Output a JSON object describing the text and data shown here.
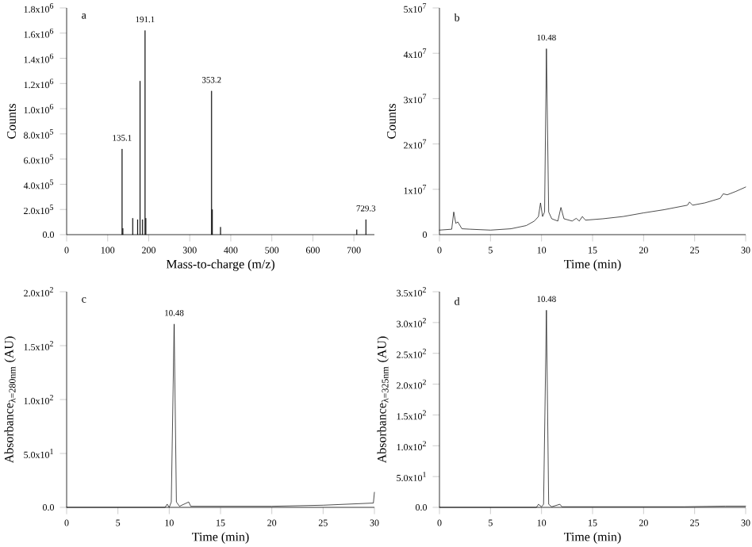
{
  "chart_data": [
    {
      "type": "bar",
      "title": "a",
      "xlabel": "Mass-to-charge (m/z)",
      "ylabel": "Counts",
      "color": "#000000",
      "x": [
        135.1,
        137,
        161,
        173,
        179,
        185,
        191.1,
        193,
        353.2,
        355,
        375,
        707,
        729.3
      ],
      "values": [
        680000,
        50000,
        130000,
        120000,
        1220000,
        120000,
        1620000,
        130000,
        1140000,
        200000,
        60000,
        40000,
        120000
      ],
      "xlim": [
        0,
        750
      ],
      "xticks": [
        0,
        100,
        200,
        300,
        400,
        500,
        600,
        700
      ],
      "ylim": [
        0,
        1800000
      ],
      "yticks": [
        {
          "value": 0,
          "label": "0.0"
        },
        {
          "value": 200000,
          "label": "2.0x10$^{5}$"
        },
        {
          "value": 400000,
          "label": "4.0x10$^{5}$"
        },
        {
          "value": 600000,
          "label": "6.0x10$^{5}$"
        },
        {
          "value": 800000,
          "label": "8.0x10$^{5}$"
        },
        {
          "value": 1000000,
          "label": "1.0x10$^{6}$"
        },
        {
          "value": 1200000,
          "label": "1.2x10$^{6}$"
        },
        {
          "value": 1400000,
          "label": "1.4x10$^{6}$"
        },
        {
          "value": 1600000,
          "label": "1.6x10$^{6}$"
        },
        {
          "value": 1800000,
          "label": "1.8x10$^{6}$"
        }
      ],
      "annotations": [
        {
          "text": "135.1",
          "x": 135.1,
          "y": 680000
        },
        {
          "text": "191.1",
          "x": 191.1,
          "y": 1620000
        },
        {
          "text": "353.2",
          "x": 353.2,
          "y": 1140000
        },
        {
          "text": "729.3",
          "x": 729.3,
          "y": 120000
        }
      ]
    },
    {
      "type": "line",
      "title": "b",
      "xlabel": "Time (min)",
      "ylabel": "Counts",
      "color": "#000000",
      "x": [
        0,
        1.2,
        1.4,
        1.6,
        1.8,
        2.2,
        3,
        5,
        7,
        8.5,
        9.3,
        9.7,
        9.9,
        10.1,
        10.3,
        10.48,
        10.7,
        11,
        11.6,
        11.9,
        12.2,
        13,
        13.4,
        13.7,
        14,
        14.3,
        16,
        18,
        20,
        22,
        24.3,
        24.5,
        24.8,
        26,
        27.5,
        27.8,
        28.2,
        29,
        30
      ],
      "values": [
        1000000,
        1200000,
        5000000,
        2500000,
        2800000,
        1300000,
        1200000,
        1000000,
        1300000,
        2000000,
        3000000,
        4000000,
        7000000,
        4000000,
        5000000,
        41000000,
        5000000,
        3500000,
        3000000,
        6000000,
        3500000,
        3000000,
        3600000,
        3000000,
        4000000,
        3200000,
        3500000,
        4000000,
        4800000,
        5500000,
        6500000,
        7200000,
        6500000,
        7000000,
        8000000,
        9000000,
        8800000,
        9500000,
        10500000
      ],
      "xlim": [
        0,
        30
      ],
      "xticks": [
        0,
        5,
        10,
        15,
        20,
        25,
        30
      ],
      "ylim": [
        0,
        50000000
      ],
      "yticks": [
        0,
        {
          "value": 10000000,
          "label": "1x10$^{7}$"
        },
        {
          "value": 20000000,
          "label": "2x10$^{7}$"
        },
        {
          "value": 30000000,
          "label": "3x10$^{7}$"
        },
        {
          "value": 40000000,
          "label": "4x10$^{7}$"
        },
        {
          "value": 50000000,
          "label": "5x10$^{7}$"
        }
      ],
      "annotations": [
        {
          "text": "10.48",
          "x": 10.48,
          "y": 41000000
        }
      ]
    },
    {
      "type": "line",
      "title": "c",
      "xlabel": "Time (min)",
      "ylabel": "Absorbance$_{λ=280nm}$ (AU)",
      "color": "#000000",
      "x": [
        0,
        9.6,
        9.8,
        10,
        10.2,
        10.48,
        10.7,
        11,
        11.9,
        12.1,
        20,
        25,
        29.9,
        30
      ],
      "values": [
        0,
        0,
        3,
        0,
        5,
        170,
        5,
        1,
        5,
        1,
        1,
        2,
        4,
        14
      ],
      "xlim": [
        0,
        30
      ],
      "xticks": [
        0,
        5,
        10,
        15,
        20,
        25,
        30
      ],
      "ylim": [
        0,
        200
      ],
      "yticks": [
        {
          "value": 0,
          "label": "0.0"
        },
        {
          "value": 50,
          "label": "5.0x10$^{1}$"
        },
        {
          "value": 100,
          "label": "1.0x10$^{2}$"
        },
        {
          "value": 150,
          "label": "1.5x10$^{2}$"
        },
        {
          "value": 200,
          "label": "2.0x10$^{2}$"
        }
      ],
      "annotations": [
        {
          "text": "10.48",
          "x": 10.48,
          "y": 170
        }
      ]
    },
    {
      "type": "line",
      "title": "d",
      "xlabel": "Time (min)",
      "ylabel": "Absorbance$_{λ=325nm}$ (AU)",
      "color": "#000000",
      "x": [
        0,
        9.5,
        9.7,
        10,
        10.2,
        10.48,
        10.7,
        11,
        11.8,
        12,
        24,
        28,
        30
      ],
      "values": [
        0,
        0,
        5,
        1,
        5,
        320,
        5,
        1,
        5,
        1,
        1,
        2,
        2
      ],
      "xlim": [
        0,
        30
      ],
      "xticks": [
        0,
        5,
        10,
        15,
        20,
        25,
        30
      ],
      "ylim": [
        0,
        350
      ],
      "yticks": [
        {
          "value": 0,
          "label": "0.0"
        },
        {
          "value": 50,
          "label": "5.0x10$^{1}$"
        },
        {
          "value": 100,
          "label": "1.0x10$^{2}$"
        },
        {
          "value": 150,
          "label": "1.5x10$^{2}$"
        },
        {
          "value": 200,
          "label": "2.0x10$^{2}$"
        },
        {
          "value": 250,
          "label": "2.5x10$^{2}$"
        },
        {
          "value": 300,
          "label": "3.0x10$^{2}$"
        },
        {
          "value": 350,
          "label": "3.5x10$^{2}$"
        }
      ],
      "annotations": [
        {
          "text": "10.48",
          "x": 10.48,
          "y": 320
        }
      ]
    }
  ]
}
